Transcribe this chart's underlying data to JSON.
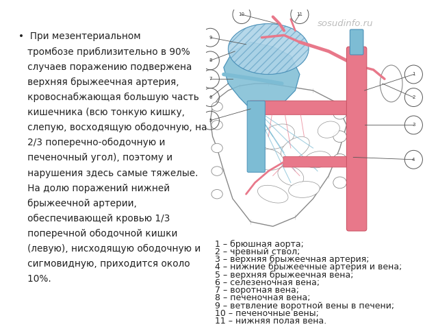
{
  "background_color": "#ffffff",
  "bullet_text_lines": [
    "•  При мезентериальном",
    "   тромбозе приблизительно в 90%",
    "   случаев поражению подвержена",
    "   верхняя брыжеечная артерия,",
    "   кровоснабжающая большую часть",
    "   кишечника (всю тонкую кишку,",
    "   слепую, восходящую ободочную, на",
    "   2/3 поперечно-ободочную и",
    "   печеночный угол), поэтому и",
    "   нарушения здесь самые тяжелые.",
    "   На долю поражений нижней",
    "   брыжеечной артерии,",
    "   обеспечивающей кровью 1/3",
    "   поперечной ободочной кишки",
    "   (левую), нисходящую ободочную и",
    "   сигмовидную, приходится около",
    "   10%."
  ],
  "legend_lines": [
    "1 – брюшная аорта;",
    "2 – чревный ствол;",
    "3 – верхняя брыжеечная артерия;",
    "4 – нижние брыжеечные артерия и вена;",
    "5 – верхняя брыжеечная вена;",
    "6 – селезеночная вена;",
    "7 – воротная вена;",
    "8 – печеночная вена;",
    "9 – ветвление воротной вены в печени;",
    "10 – печеночные вены;",
    "11 – нижняя полая вена."
  ],
  "watermark": "sosudinfo.ru",
  "text_color": "#222222",
  "legend_color": "#222222",
  "watermark_color": "#b0b0b0",
  "bullet_fontsize": 9.8,
  "legend_fontsize": 9.0,
  "watermark_fontsize": 9.5,
  "blue_vessel": "#7dbcd4",
  "blue_dark": "#4a90b8",
  "blue_light": "#aed4e8",
  "pink_vessel": "#e8788a",
  "pink_dark": "#cc5566",
  "pink_light": "#f0a0b0",
  "outline_color": "#888888",
  "white": "#ffffff",
  "gray_light": "#dddddd"
}
